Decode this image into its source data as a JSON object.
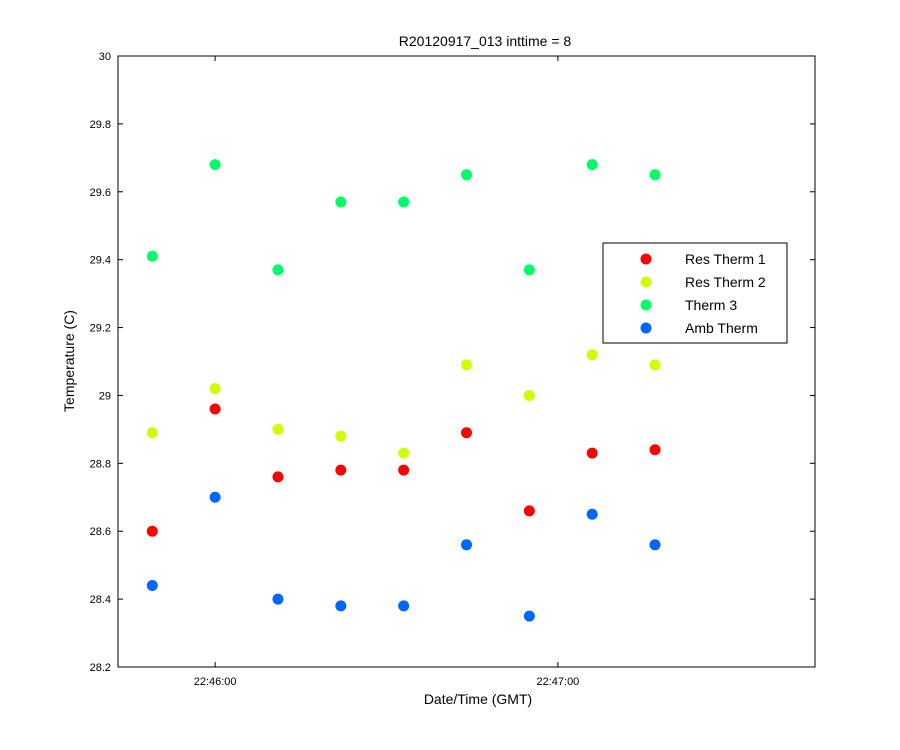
{
  "chart_data": {
    "type": "scatter",
    "title": "R20120917_013 inttime = 8",
    "xlabel": "Date/Time (GMT)",
    "ylabel": "Temperature (C)",
    "ylim": [
      28.2,
      30
    ],
    "yticks": [
      28.2,
      28.4,
      28.6,
      28.8,
      29,
      29.2,
      29.4,
      29.6,
      29.8,
      30
    ],
    "xlim": [
      "22:45:43",
      "22:47:45"
    ],
    "xticks": [
      "22:46:00",
      "22:47:00"
    ],
    "x": [
      "22:45:49",
      "22:46:00",
      "22:46:11",
      "22:46:22",
      "22:46:33",
      "22:46:44",
      "22:46:55",
      "22:47:06",
      "22:47:17"
    ],
    "grid": false,
    "legend_position": "right",
    "series": [
      {
        "name": "Res Therm 1",
        "color": "#ff0000",
        "values": [
          28.6,
          28.96,
          28.76,
          28.78,
          28.78,
          28.89,
          28.66,
          28.83,
          28.84
        ]
      },
      {
        "name": "Res Therm 2",
        "color": "#ccff00",
        "values": [
          28.89,
          29.02,
          28.9,
          28.88,
          28.83,
          29.09,
          29.0,
          29.12,
          29.09
        ]
      },
      {
        "name": "Therm 3",
        "color": "#00ff66",
        "values": [
          29.41,
          29.68,
          29.37,
          29.57,
          29.57,
          29.65,
          29.37,
          29.68,
          29.65
        ]
      },
      {
        "name": "Amb Therm",
        "color": "#0066ff",
        "values": [
          28.44,
          28.7,
          28.4,
          28.38,
          28.38,
          28.56,
          28.35,
          28.65,
          28.56
        ]
      }
    ]
  }
}
